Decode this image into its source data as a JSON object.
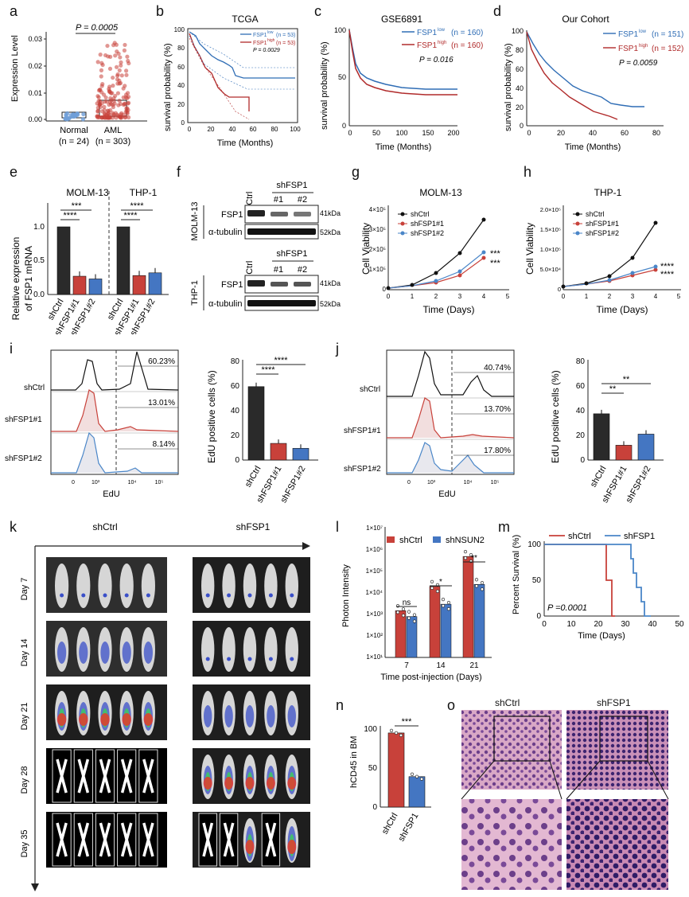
{
  "colors": {
    "red": "#b02a2a",
    "blue": "#2f6db5",
    "black": "#111111",
    "blueLight": "#4a86c8",
    "redBar": "#c8413a",
    "blueBar": "#4476c2"
  },
  "panels": {
    "a": "a",
    "b": "b",
    "c": "c",
    "d": "d",
    "e": "e",
    "f": "f",
    "g": "g",
    "h": "h",
    "i": "i",
    "j": "j",
    "k": "k",
    "l": "l",
    "m": "m",
    "n": "n",
    "o": "o"
  },
  "a": {
    "pval": "P = 0.0005",
    "ylabel": "Expression Level",
    "yticks": [
      "0.00",
      "0.01",
      "0.02",
      "0.03"
    ],
    "groups": [
      {
        "name": "Normal",
        "n": "(n = 24)"
      },
      {
        "name": "AML",
        "n": "(n = 303)"
      }
    ]
  },
  "b": {
    "title": "TCGA",
    "ylabel": "survival probability (%)",
    "xlabel": "Time (Months)",
    "yticks": [
      "0",
      "20",
      "40",
      "60",
      "80",
      "100"
    ],
    "xticks": [
      "0",
      "20",
      "40",
      "60",
      "80",
      "100"
    ],
    "legend": [
      {
        "label": "FSP1",
        "sup": "low",
        "n": "(n = 53)"
      },
      {
        "label": "FSP1",
        "sup": "high",
        "n": "(n = 53)"
      }
    ],
    "pval": "P = 0.0029"
  },
  "c": {
    "title": "GSE6891",
    "ylabel": "survival probability (%)",
    "xlabel": "Time (Months)",
    "yticks": [
      "0",
      "50",
      "100"
    ],
    "xticks": [
      "0",
      "50",
      "100",
      "150",
      "200"
    ],
    "legend": [
      {
        "label": "FSP1",
        "sup": "low",
        "n": "(n = 160)"
      },
      {
        "label": "FSP1",
        "sup": "high",
        "n": "(n = 160)"
      }
    ],
    "pval": "P = 0.016"
  },
  "d": {
    "title": "Our Cohort",
    "ylabel": "survival probability (%)",
    "xlabel": "Time (Months)",
    "yticks": [
      "0",
      "20",
      "40",
      "60",
      "80",
      "100"
    ],
    "xticks": [
      "0",
      "20",
      "40",
      "60",
      "80"
    ],
    "legend": [
      {
        "label": "FSP1",
        "sup": "low",
        "n": "(n = 151)"
      },
      {
        "label": "FSP1",
        "sup": "high",
        "n": "(n = 152)"
      }
    ],
    "pval": "P = 0.0059"
  },
  "e": {
    "ylabel1": "Relative expression",
    "ylabel2": "of FSP1 mRNA",
    "yticks": [
      "0.0",
      "0.5",
      "1.0"
    ],
    "cells": [
      "MOLM-13",
      "THP-1"
    ],
    "cats": [
      "shCtrl",
      "shFSP1#1",
      "shFSP1#2"
    ],
    "sig": [
      "***",
      "****",
      "****",
      "****"
    ],
    "chart_data": {
      "type": "bar",
      "series": [
        {
          "name": "MOLM-13",
          "values": [
            1.0,
            0.27,
            0.23
          ]
        },
        {
          "name": "THP-1",
          "values": [
            1.0,
            0.28,
            0.32
          ]
        }
      ]
    }
  },
  "f": {
    "lanes": [
      "shCtrl",
      "#1",
      "#2"
    ],
    "group": "shFSP1",
    "rows": [
      "FSP1",
      "α-tubulin"
    ],
    "kda": [
      "41kDa",
      "52kDa"
    ],
    "cells": [
      "MOLM-13",
      "THP-1"
    ]
  },
  "g": {
    "title": "MOLM-13",
    "ylabel": "Cell Viability",
    "xlabel": "Time (Days)",
    "yticks": [
      "0",
      "1×10⁵",
      "2×10⁵",
      "3×10⁵",
      "4×10⁵"
    ],
    "xticks": [
      "0",
      "1",
      "2",
      "3",
      "4",
      "5"
    ],
    "legend": [
      "shCtrl",
      "shFSP1#1",
      "shFSP1#2"
    ],
    "sig": [
      "***",
      "***"
    ]
  },
  "h": {
    "title": "THP-1",
    "ylabel": "Cell Viability",
    "xlabel": "Time (Days)",
    "yticks": [
      "0",
      "5.0×10⁴",
      "1.0×10⁵",
      "1.5×10⁵",
      "2.0×10⁵"
    ],
    "xticks": [
      "0",
      "1",
      "2",
      "3",
      "4",
      "5"
    ],
    "legend": [
      "shCtrl",
      "shFSP1#1",
      "shFSP1#2"
    ],
    "sig": [
      "****",
      "****"
    ]
  },
  "i": {
    "rows": [
      "shCtrl",
      "shFSP1#1",
      "shFSP1#2"
    ],
    "pcts": [
      "60.23%",
      "13.01%",
      "8.14%"
    ],
    "xlabel": "EdU",
    "xticks": [
      "0",
      "10³",
      "10⁴",
      "10⁵"
    ],
    "bar": {
      "ylabel": "EdU positive cells (%)",
      "yticks": [
        "0",
        "20",
        "40",
        "60",
        "80"
      ],
      "cats": [
        "shCtrl",
        "shFSP1#1",
        "shFSP1#2"
      ],
      "sig": [
        "****",
        "****"
      ]
    },
    "chart_data": {
      "type": "bar",
      "categories": [
        "shCtrl",
        "shFSP1#1",
        "shFSP1#2"
      ],
      "values": [
        59.5,
        13.5,
        9.5
      ],
      "ylim": [
        0,
        80
      ]
    }
  },
  "j": {
    "rows": [
      "shCtrl",
      "shFSP1#1",
      "shFSP1#2"
    ],
    "pcts": [
      "40.74%",
      "13.70%",
      "17.80%"
    ],
    "xlabel": "EdU",
    "xticks": [
      "0",
      "10³",
      "10⁴",
      "10⁵"
    ],
    "bar": {
      "ylabel": "EdU positive cells (%)",
      "yticks": [
        "0",
        "20",
        "40",
        "60",
        "80"
      ],
      "cats": [
        "shCtrl",
        "shFSP1#1",
        "shFSP1#2"
      ],
      "sig": [
        "**",
        "**"
      ]
    },
    "chart_data": {
      "type": "bar",
      "categories": [
        "shCtrl",
        "shFSP1#1",
        "shFSP1#2"
      ],
      "values": [
        37.5,
        12,
        21
      ],
      "ylim": [
        0,
        80
      ]
    }
  },
  "k": {
    "groups": [
      "shCtrl",
      "shFSP1"
    ],
    "days": [
      "Day 7",
      "Day 14",
      "Day 21",
      "Day 28",
      "Day 35"
    ]
  },
  "l": {
    "legend": [
      "shCtrl",
      "shNSUN2"
    ],
    "ylabel": "Photon Intensity",
    "xlabel": "Time post-injection (Days)",
    "yticks": [
      "1×10¹",
      "1×10²",
      "1×10³",
      "1×10⁴",
      "1×10⁵",
      "1×10⁶",
      "1×10⁷"
    ],
    "cats": [
      "7",
      "14",
      "21"
    ],
    "sig": [
      "ns",
      "*",
      "**"
    ],
    "chart_data": {
      "type": "bar",
      "categories": [
        "7",
        "14",
        "21"
      ],
      "series": [
        {
          "name": "shCtrl",
          "values": [
            1500,
            20000,
            500000
          ]
        },
        {
          "name": "shNSUN2",
          "values": [
            800,
            3000,
            25000
          ]
        }
      ]
    }
  },
  "m": {
    "legend": [
      "shCtrl",
      "shFSP1"
    ],
    "ylabel": "Percent Survival (%)",
    "xlabel": "Time (Days)",
    "yticks": [
      "0",
      "50",
      "100"
    ],
    "xticks": [
      "0",
      "10",
      "20",
      "30",
      "40",
      "50"
    ],
    "pval": "P =0.0001"
  },
  "n": {
    "ylabel": "hCD45 in BM",
    "yticks": [
      "0",
      "50",
      "100"
    ],
    "cats": [
      "shCtrl",
      "shFSP1"
    ],
    "sig": "***",
    "chart_data": {
      "type": "bar",
      "categories": [
        "shCtrl",
        "shFSP1"
      ],
      "values": [
        95,
        39
      ],
      "ylim": [
        0,
        100
      ]
    }
  },
  "o": {
    "groups": [
      "shCtrl",
      "shFSP1"
    ]
  }
}
